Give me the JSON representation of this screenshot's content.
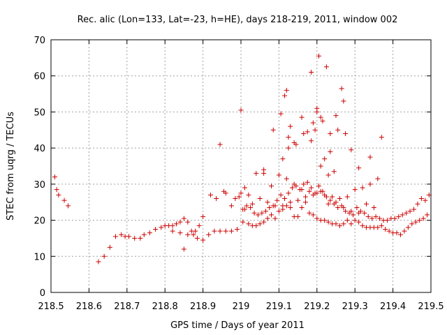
{
  "chart_data": {
    "type": "scatter",
    "title": "Rec. alic (Lon=133, Lat=-23, h=HE), days 218-219, 2011, window 002",
    "xlabel": "GPS time / Days of year 2011",
    "ylabel": "STEC from uqrg / TECUs",
    "xlim": [
      218.5,
      219.5
    ],
    "ylim": [
      0,
      70
    ],
    "xticks": [
      "218.5",
      "218.6",
      "218.7",
      "218.8",
      "218.9",
      "219",
      "219.1",
      "219.2",
      "219.3",
      "219.4",
      "219.5"
    ],
    "yticks": [
      "0",
      "10",
      "20",
      "30",
      "40",
      "50",
      "60",
      "70"
    ],
    "grid": true,
    "marker": "plus",
    "color": "#cc0000",
    "series": [
      {
        "x": [
          218.51,
          218.515,
          218.52,
          218.535,
          218.545,
          218.625,
          218.64,
          218.655,
          218.67,
          218.685,
          218.695,
          218.705,
          218.72,
          218.735,
          218.745,
          218.76,
          218.775,
          218.79,
          218.8,
          218.81,
          218.82,
          218.83,
          218.84,
          218.85,
          218.86,
          218.87,
          218.88,
          218.89,
          218.9,
          218.82,
          218.84,
          218.85,
          218.86,
          218.875,
          218.885,
          218.9,
          218.915,
          218.93,
          218.945,
          218.96,
          218.975,
          218.99,
          218.92,
          218.935,
          218.945,
          218.955,
          218.96,
          218.975,
          218.985,
          218.995,
          219.005,
          219.01,
          219.02,
          219.03,
          219.04,
          219.05,
          219.06,
          219.07,
          219.08,
          219.09,
          219.1,
          219.11,
          219.12,
          219.13,
          219.14,
          219.15,
          219.16,
          219.17,
          219.18,
          219.19,
          219.2,
          219.21,
          219.22,
          219.23,
          219.24,
          219.25,
          219.26,
          219.27,
          219.28,
          219.29,
          219.3,
          219.31,
          219.32,
          219.33,
          219.34,
          219.35,
          219.36,
          219.37,
          219.38,
          219.39,
          219.4,
          219.41,
          219.42,
          219.43,
          219.44,
          219.45,
          219.46,
          219.47,
          219.48,
          219.49,
          219.005,
          219.015,
          219.025,
          219.035,
          219.045,
          219.055,
          219.065,
          219.075,
          219.085,
          219.095,
          219.105,
          219.115,
          219.125,
          219.135,
          219.145,
          219.155,
          219.165,
          219.175,
          219.185,
          219.195,
          219.205,
          219.215,
          219.225,
          219.235,
          219.245,
          219.255,
          219.265,
          219.275,
          219.285,
          219.295,
          219.305,
          219.315,
          219.325,
          219.335,
          219.345,
          219.355,
          219.365,
          219.375,
          219.385,
          219.395,
          219.405,
          219.415,
          219.425,
          219.435,
          219.445,
          219.455,
          219.465,
          219.475,
          219.485,
          219.495,
          219.0,
          219.02,
          219.04,
          219.06,
          219.08,
          219.1,
          219.12,
          219.14,
          219.16,
          219.18,
          219.2,
          219.22,
          219.24,
          219.26,
          219.28,
          219.3,
          219.32,
          219.34,
          219.36,
          219.01,
          219.03,
          219.05,
          219.07,
          219.09,
          219.11,
          219.13,
          219.15,
          219.17,
          219.19,
          219.21,
          219.23,
          219.25,
          219.27,
          219.29,
          219.31,
          219.33,
          219.35,
          219.0,
          219.06,
          219.11,
          219.115,
          219.125,
          219.13,
          219.16,
          219.185,
          219.19,
          219.2,
          219.21,
          219.22,
          219.235,
          219.25,
          219.265,
          219.27,
          219.29,
          219.31,
          219.34,
          219.37,
          219.085,
          219.105,
          219.125,
          219.145,
          219.175,
          219.195,
          219.215,
          219.235,
          219.255,
          219.275,
          219.12,
          219.14,
          219.165,
          219.185,
          219.205,
          219.225,
          219.245,
          219.2,
          219.21,
          219.23
        ],
        "y": [
          32,
          28.5,
          27,
          25.5,
          24,
          8.5,
          10,
          12.5,
          15.5,
          16,
          15.5,
          15.5,
          15,
          15,
          16,
          16.5,
          17.5,
          18,
          18.5,
          18.5,
          18.5,
          19,
          19.5,
          20.5,
          19.5,
          17,
          17,
          18.5,
          21,
          17,
          16.5,
          12,
          16,
          16,
          15,
          14.5,
          16,
          17,
          17,
          17,
          17,
          17.5,
          27,
          26,
          41,
          28,
          27.5,
          24,
          26,
          26.5,
          19.5,
          29,
          19,
          18.5,
          18.5,
          19,
          19.5,
          20.5,
          21.5,
          20.5,
          22.5,
          23,
          24,
          23.5,
          21,
          21,
          23.5,
          25,
          22,
          21.5,
          20.5,
          20,
          20,
          19.5,
          19,
          19,
          18.5,
          19,
          20,
          19,
          20,
          19.5,
          18.5,
          18,
          18,
          18,
          18,
          18.5,
          17.5,
          17,
          16.5,
          16.5,
          16,
          17,
          18,
          19,
          19.5,
          20,
          20.5,
          21.5,
          23,
          24,
          23.5,
          22,
          21.5,
          22,
          22.5,
          23.5,
          24,
          25.5,
          27,
          26,
          27.5,
          29,
          29.5,
          28.5,
          30,
          30.5,
          29,
          27.5,
          29.5,
          28,
          26.5,
          25.5,
          24.5,
          23.5,
          24,
          22.5,
          22,
          21.5,
          23.5,
          22.5,
          22,
          21,
          20.5,
          21,
          20.5,
          20,
          20,
          20.5,
          20.5,
          21,
          21.5,
          22,
          22.5,
          23,
          24.5,
          26,
          25.5,
          27,
          27.5,
          27,
          33,
          34,
          29.5,
          32.5,
          31.5,
          30,
          28.5,
          28,
          27.5,
          27,
          26.5,
          26,
          26.5,
          28.5,
          29,
          30,
          31.5,
          23,
          24.5,
          26,
          25,
          24,
          24,
          25,
          25.5,
          26.5,
          27,
          28,
          24.5,
          25,
          23.5,
          22.5,
          22,
          24.5,
          23.5,
          50.5,
          33,
          37,
          54.5,
          43,
          46,
          48.5,
          42,
          47,
          50,
          48.5,
          37,
          39,
          49,
          56.5,
          53,
          39.5,
          34.5,
          37.5,
          43,
          45,
          49.5,
          40,
          41,
          44.5,
          45,
          47.5,
          44,
          45,
          44,
          56,
          41.5,
          44,
          61,
          65.5,
          62.5,
          33.5,
          51,
          35,
          32.5
        ]
      }
    ]
  }
}
